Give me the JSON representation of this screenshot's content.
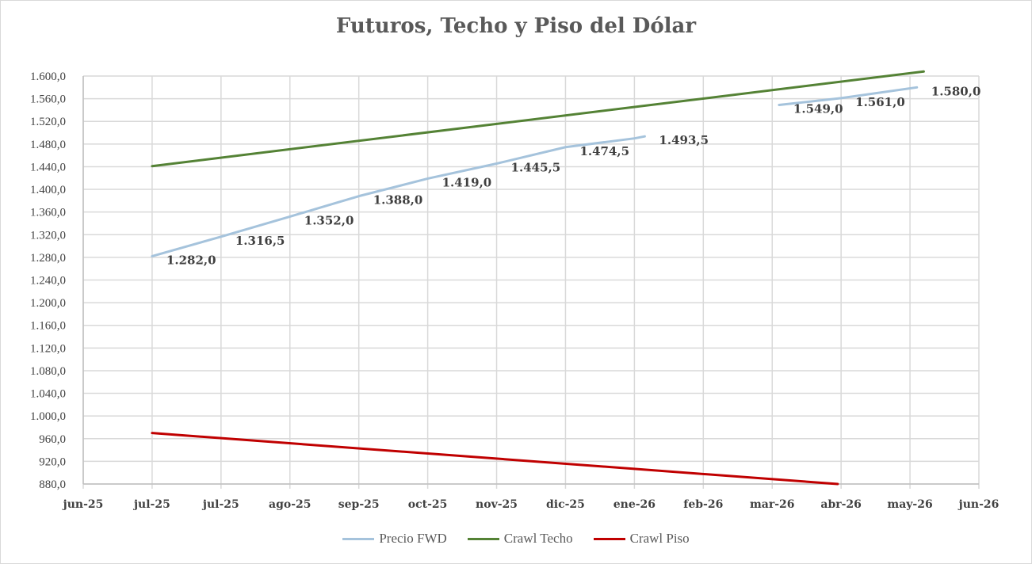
{
  "chart_data": {
    "type": "line",
    "title": "Futuros, Techo y Piso del Dólar",
    "xlabel": "",
    "ylabel": "",
    "ylim": [
      880,
      1600
    ],
    "y_ticks": [
      "1.600,0",
      "1.560,0",
      "1.520,0",
      "1.480,0",
      "1.440,0",
      "1.400,0",
      "1.360,0",
      "1.320,0",
      "1.280,0",
      "1.240,0",
      "1.200,0",
      "1.160,0",
      "1.120,0",
      "1.080,0",
      "1.040,0",
      "1.000,0",
      "960,0",
      "920,0",
      "880,0"
    ],
    "x_ticks": [
      "jun-25",
      "jul-25",
      "jul-25",
      "ago-25",
      "sep-25",
      "oct-25",
      "nov-25",
      "dic-25",
      "ene-26",
      "feb-26",
      "mar-26",
      "abr-26",
      "may-26",
      "jun-26"
    ],
    "grid": true,
    "legend_position": "bottom",
    "series": [
      {
        "name": "Precio FWD",
        "color": "#a5c3dc",
        "segments": [
          {
            "x": [
              1,
              2,
              3,
              4,
              5,
              6,
              7,
              8,
              8.15
            ],
            "y": [
              1282.0,
              1316.5,
              1352.0,
              1388.0,
              1419.0,
              1445.5,
              1474.5,
              1490,
              1493.5
            ]
          },
          {
            "x": [
              10.1,
              11,
              12.1
            ],
            "y": [
              1549.0,
              1561.0,
              1580.0
            ]
          }
        ],
        "labels": [
          {
            "x": 1,
            "y": 1282.0,
            "text": "1.282,0"
          },
          {
            "x": 2,
            "y": 1316.5,
            "text": "1.316,5"
          },
          {
            "x": 3,
            "y": 1352.0,
            "text": "1.352,0"
          },
          {
            "x": 4,
            "y": 1388.0,
            "text": "1.388,0"
          },
          {
            "x": 5,
            "y": 1419.0,
            "text": "1.419,0"
          },
          {
            "x": 6,
            "y": 1445.5,
            "text": "1.445,5"
          },
          {
            "x": 7,
            "y": 1474.5,
            "text": "1.474,5"
          },
          {
            "x": 8.15,
            "y": 1493.5,
            "text": "1.493,5"
          },
          {
            "x": 10.1,
            "y": 1549.0,
            "text": "1.549,0"
          },
          {
            "x": 11,
            "y": 1561.0,
            "text": "1.561,0"
          },
          {
            "x": 12.1,
            "y": 1580.0,
            "text": "1.580,0"
          }
        ]
      },
      {
        "name": "Crawl Techo",
        "color": "#548235",
        "segments": [
          {
            "x": [
              1,
              12.2
            ],
            "y": [
              1441,
              1608
            ]
          }
        ]
      },
      {
        "name": "Crawl Piso",
        "color": "#c00000",
        "segments": [
          {
            "x": [
              1,
              10.95
            ],
            "y": [
              970,
              880
            ]
          }
        ]
      }
    ]
  }
}
